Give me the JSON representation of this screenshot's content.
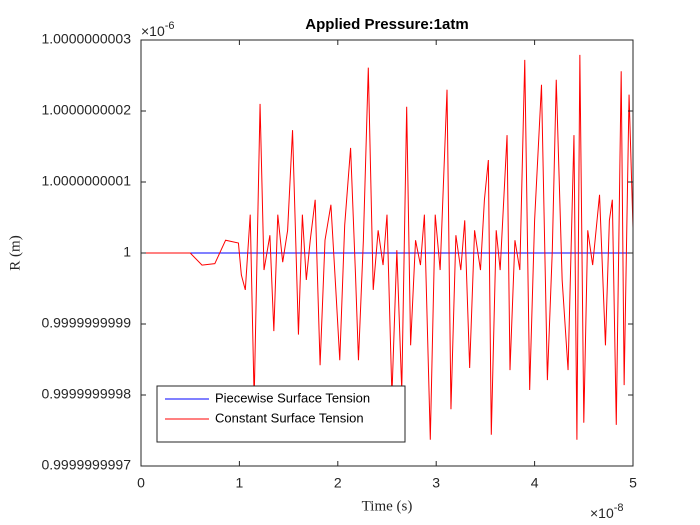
{
  "chart_data": {
    "type": "line",
    "title": "Applied Pressure:1atm",
    "x_label": "Time (s)",
    "y_label": "R (m)",
    "x_multiplier": {
      "base": "×10",
      "exponent": "-8"
    },
    "y_multiplier": {
      "base": "×10",
      "exponent": "-6"
    },
    "xlim": [
      0,
      5
    ],
    "xticks": [
      0,
      1,
      2,
      3,
      4,
      5
    ],
    "ylim": [
      0.9999999997,
      1.0000000003
    ],
    "yticks": [
      0.9999999997,
      0.9999999998,
      0.9999999999,
      1,
      1.0000000001,
      1.0000000002,
      1.0000000003
    ],
    "grid": false,
    "legend_position": "lower left",
    "series": [
      {
        "name": "Piecewise Surface Tension",
        "color": "#0000ff",
        "x": [
          0,
          5
        ],
        "values": [
          1,
          1
        ]
      },
      {
        "name": "Constant Surface Tension",
        "color": "#ff0000",
        "x": [
          0,
          0.5,
          0.62,
          0.75,
          0.86,
          0.99,
          1.02,
          1.06,
          1.11,
          1.15,
          1.21,
          1.25,
          1.31,
          1.35,
          1.39,
          1.44,
          1.49,
          1.54,
          1.6,
          1.64,
          1.68,
          1.72,
          1.77,
          1.82,
          1.87,
          1.93,
          1.98,
          2.02,
          2.07,
          2.13,
          2.18,
          2.21,
          2.26,
          2.31,
          2.36,
          2.41,
          2.46,
          2.5,
          2.55,
          2.6,
          2.65,
          2.7,
          2.74,
          2.79,
          2.84,
          2.88,
          2.94,
          2.99,
          3.04,
          3.11,
          3.15,
          3.2,
          3.25,
          3.29,
          3.34,
          3.39,
          3.45,
          3.49,
          3.53,
          3.56,
          3.61,
          3.65,
          3.72,
          3.75,
          3.8,
          3.85,
          3.9,
          3.95,
          4,
          4.07,
          4.13,
          4.18,
          4.22,
          4.28,
          4.34,
          4.4,
          4.43,
          4.46,
          4.5,
          4.54,
          4.59,
          4.66,
          4.72,
          4.76,
          4.79,
          4.83,
          4.88,
          4.91,
          4.96,
          5
        ],
        "values": [
          1,
          1,
          0.999999999983,
          0.999999999985,
          1.000000000018,
          1.000000000014,
          0.999999999969,
          0.999999999948,
          1.000000000054,
          0.999999999793,
          1.00000000021,
          0.999999999976,
          1.000000000025,
          0.99999999989,
          1.000000000054,
          0.999999999987,
          1.000000000032,
          1.000000000173,
          0.999999999885,
          1.000000000054,
          0.999999999962,
          1.000000000018,
          1.000000000075,
          0.999999999842,
          1.000000000018,
          1.000000000068,
          0.999999999948,
          0.999999999849,
          1.000000000039,
          1.000000000148,
          0.999999999969,
          0.999999999849,
          1.000000000018,
          1.000000000261,
          0.999999999948,
          1.000000000032,
          0.999999999983,
          1.000000000054,
          0.999999999799,
          1.000000000004,
          0.999999999806,
          1.000000000206,
          0.99999999987,
          1.000000000018,
          0.999999999983,
          1.000000000054,
          0.999999999737,
          1.000000000054,
          0.999999999976,
          1.00000000023,
          0.99999999978,
          1.000000000025,
          0.999999999976,
          1.000000000046,
          0.999999999838,
          1.000000000032,
          0.999999999976,
          1.000000000075,
          1.000000000131,
          0.999999999744,
          1.000000000032,
          0.999999999976,
          1.000000000166,
          0.999999999835,
          1.000000000018,
          0.999999999976,
          1.000000000272,
          0.999999999807,
          1.000000000046,
          1.000000000237,
          0.999999999821,
          1.000000000004,
          1.000000000244,
          0.999999999962,
          0.999999999835,
          1.000000000166,
          0.999999999737,
          1.000000000279,
          0.999999999761,
          1.000000000032,
          0.999999999983,
          1.000000000082,
          0.99999999987,
          1.000000000046,
          1.000000000075,
          0.999999999758,
          1.000000000256,
          0.999999999814,
          1.000000000223,
          1.000000000035
        ]
      }
    ]
  }
}
